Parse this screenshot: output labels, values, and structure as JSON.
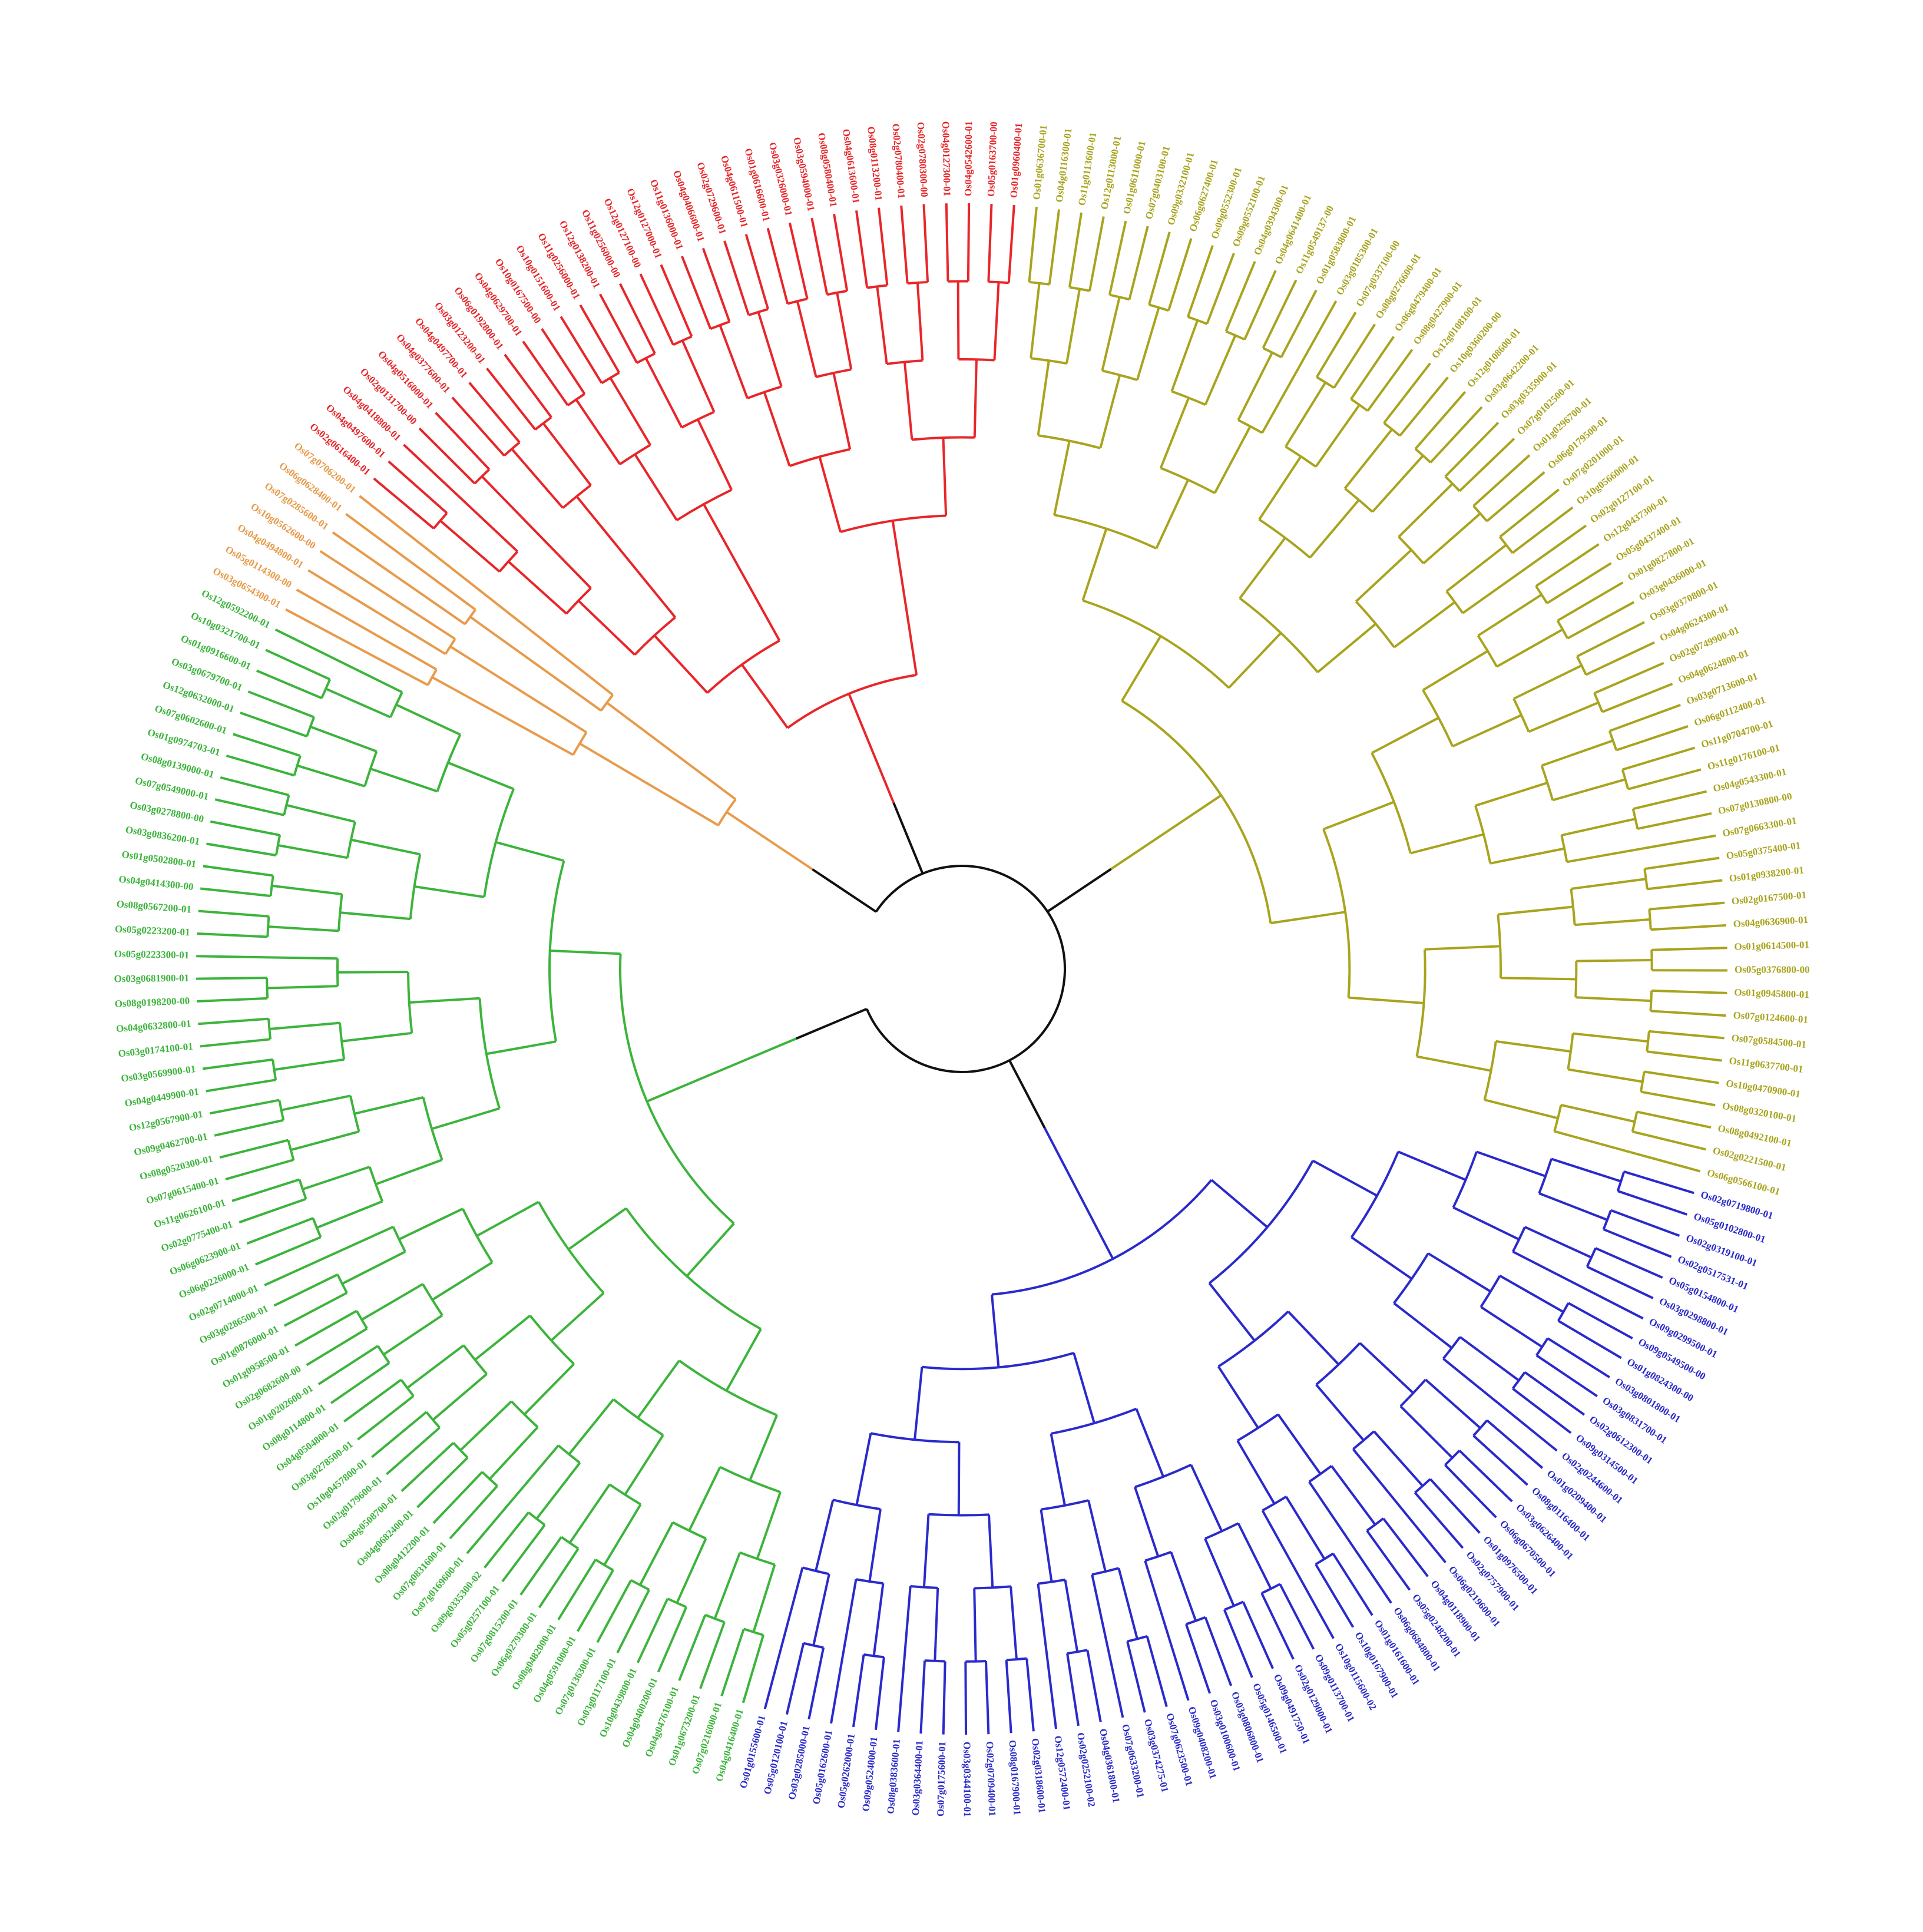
{
  "tree": {
    "clades": [
      {
        "color": "#e89a4a",
        "leaves": [
          "Os03g0654300-01",
          "Os05g0114300-00",
          "Os04g0494800-01",
          "Os10g0562600-00",
          "Os07g0285600-01",
          "Os06g0628400-01",
          "Os07g0706200-01"
        ]
      },
      {
        "color": "#e8262a",
        "leaves": [
          "Os02g0616400-01",
          "Os04g0497600-01",
          "Os04g0418800-01",
          "Os02g0131700-00",
          "Os04g0516000-01",
          "Os04g0377600-01",
          "Os04g0497700-01",
          "Os03g0123200-01",
          "Os06g0192800-01",
          "Os04g0629700-01",
          "Os10g0167500-00",
          "Os10g0151600-01",
          "Os11g0256000-01",
          "Os12g0138200-01",
          "Os11g0256000-00",
          "Os12g0127100-00",
          "Os12g0127000-01",
          "Os11g0136000-01",
          "Os04g0406600-01",
          "Os02g0729600-01",
          "Os04g0611500-01",
          "Os01g0616600-01",
          "Os03g0326000-01",
          "Os03g0594000-01",
          "Os08g0580400-01",
          "Os04g0613600-01",
          "Os08g0113200-01",
          "Os02g0780400-01",
          "Os02g0780300-00",
          "Os04g0127300-01",
          "Os04g0542600-01",
          "Os05g0163700-00",
          "Os01g0960400-01"
        ]
      },
      {
        "color": "#a8a41e",
        "leaves": [
          "Os01g0636700-01",
          "Os04g0116300-01",
          "Os11g0113600-01",
          "Os12g0113000-01",
          "Os01g0611000-01",
          "Os07g0403100-01",
          "Os09g0332100-01",
          "Os06g0627400-01",
          "Os09g0552300-01",
          "Os09g0552100-01",
          "Os04g0394300-01",
          "Os04g0641400-01",
          "Os11g0549137-00",
          "Os01g0583800-01",
          "Os03g0185300-01",
          "Os07g0337100-00",
          "Os08g0276600-01",
          "Os06g0479400-01",
          "Os08g0427900-01",
          "Os12g0108100-01",
          "Os10g0360200-00",
          "Os12g0108600-01",
          "Os03g0642200-01",
          "Os03g0335900-01",
          "Os07g0102500-01",
          "Os01g0296700-01",
          "Os06g0179500-01",
          "Os07g0201000-01",
          "Os10g0566000-01",
          "Os02g0127100-01",
          "Os12g0437300-01",
          "Os05g0437400-01",
          "Os01g0827800-01",
          "Os03g0436000-01",
          "Os03g0370800-01",
          "Os04g0624300-01",
          "Os02g0749900-01",
          "Os04g0624800-01",
          "Os03g0713600-01",
          "Os06g0112400-01",
          "Os11g0704700-01",
          "Os11g0176100-01",
          "Os04g0543300-01",
          "Os07g0130800-00",
          "Os07g0663300-01",
          "Os05g0375400-01",
          "Os01g0938200-01",
          "Os02g0167500-01",
          "Os04g0636900-01",
          "Os01g0614500-01",
          "Os05g0376800-00",
          "Os01g0945800-01",
          "Os07g0124600-01",
          "Os07g0584500-01",
          "Os11g0637700-01",
          "Os10g0470900-01",
          "Os08g0320100-01",
          "Os08g0492100-01",
          "Os02g0221500-01",
          "Os06g0566100-01"
        ]
      },
      {
        "color": "#2a2acc",
        "leaves": [
          "Os02g0719800-01",
          "Os05g0102800-01",
          "Os02g0319100-01",
          "Os02g0517531-01",
          "Os05g0154800-01",
          "Os03g0298800-01",
          "Os09g0299500-01",
          "Os09g0549500-00",
          "Os01g0824300-00",
          "Os03g0801800-01",
          "Os03g0831700-01",
          "Os02g0612300-01",
          "Os09g0314500-01",
          "Os02g0244600-01",
          "Os01g0209400-01",
          "Os08g0116400-01",
          "Os03g0626400-01",
          "Os06g0670500-01",
          "Os01g0976500-01",
          "Os02g0757900-01",
          "Os06g0219600-01",
          "Os04g0118900-01",
          "Os05g0248200-01",
          "Os06g0684800-01",
          "Os01g0161600-01",
          "Os10g0167900-01",
          "Os10g0115600-02",
          "Os09g0113700-01",
          "Os02g0129000-01",
          "Os09g0491750-01",
          "Os05g0146500-01",
          "Os03g0806800-01",
          "Os03g0100600-01",
          "Os09g0408200-01",
          "Os07g0623500-01",
          "Os03g0374275-01",
          "Os07g0633200-01",
          "Os04g0361800-01",
          "Os02g0252100-02",
          "Os12g0572400-01",
          "Os02g0318600-01",
          "Os08g0167900-01",
          "Os02g0709400-01",
          "Os03g0344100-01",
          "Os07g0175600-01",
          "Os03g0364400-01",
          "Os08g0383600-01",
          "Os09g0524000-01",
          "Os05g0262000-01",
          "Os05g0162600-01",
          "Os03g0285000-01",
          "Os05g0120100-01",
          "Os01g0155600-01"
        ]
      },
      {
        "color": "#3cb43c",
        "leaves": [
          "Os04g0416400-01",
          "Os07g0216000-01",
          "Os01g0673200-01",
          "Os04g0476100-01",
          "Os04g0400200-01",
          "Os10g0439800-01",
          "Os03g0117100-01",
          "Os07g0136300-01",
          "Os04g0591000-01",
          "Os08g0482000-01",
          "Os06g0279300-01",
          "Os07g0815200-01",
          "Os05g0257100-01",
          "Os09g0335300-02",
          "Os07g0169600-01",
          "Os07g0831600-01",
          "Os08g0412200-01",
          "Os04g0682400-01",
          "Os06g0508700-01",
          "Os02g0179600-01",
          "Os10g0457800-01",
          "Os03g0278500-01",
          "Os04g0504800-01",
          "Os08g0114800-01",
          "Os01g0202600-01",
          "Os02g0682600-00",
          "Os01g0958500-01",
          "Os01g0876000-01",
          "Os03g0286500-01",
          "Os02g0714000-01",
          "Os06g0226000-01",
          "Os06g0623900-01",
          "Os02g0775400-01",
          "Os11g0626100-01",
          "Os07g0615400-01",
          "Os08g0520300-01",
          "Os09g0462700-01",
          "Os12g0567900-01",
          "Os04g0449900-01",
          "Os03g0569900-01",
          "Os03g0174100-01",
          "Os04g0632800-01",
          "Os08g0198200-00",
          "Os03g0681900-01",
          "Os05g0223300-01",
          "Os05g0223200-01",
          "Os08g0567200-01",
          "Os04g0414300-00",
          "Os01g0502800-01",
          "Os03g0836200-01",
          "Os03g0278800-00",
          "Os07g0549000-01",
          "Os08g0139000-01",
          "Os01g0974703-01",
          "Os07g0602600-01",
          "Os12g0632000-01",
          "Os03g0679700-01",
          "Os01g0916600-01",
          "Os10g0321700-01",
          "Os12g0592200-01"
        ]
      }
    ]
  }
}
